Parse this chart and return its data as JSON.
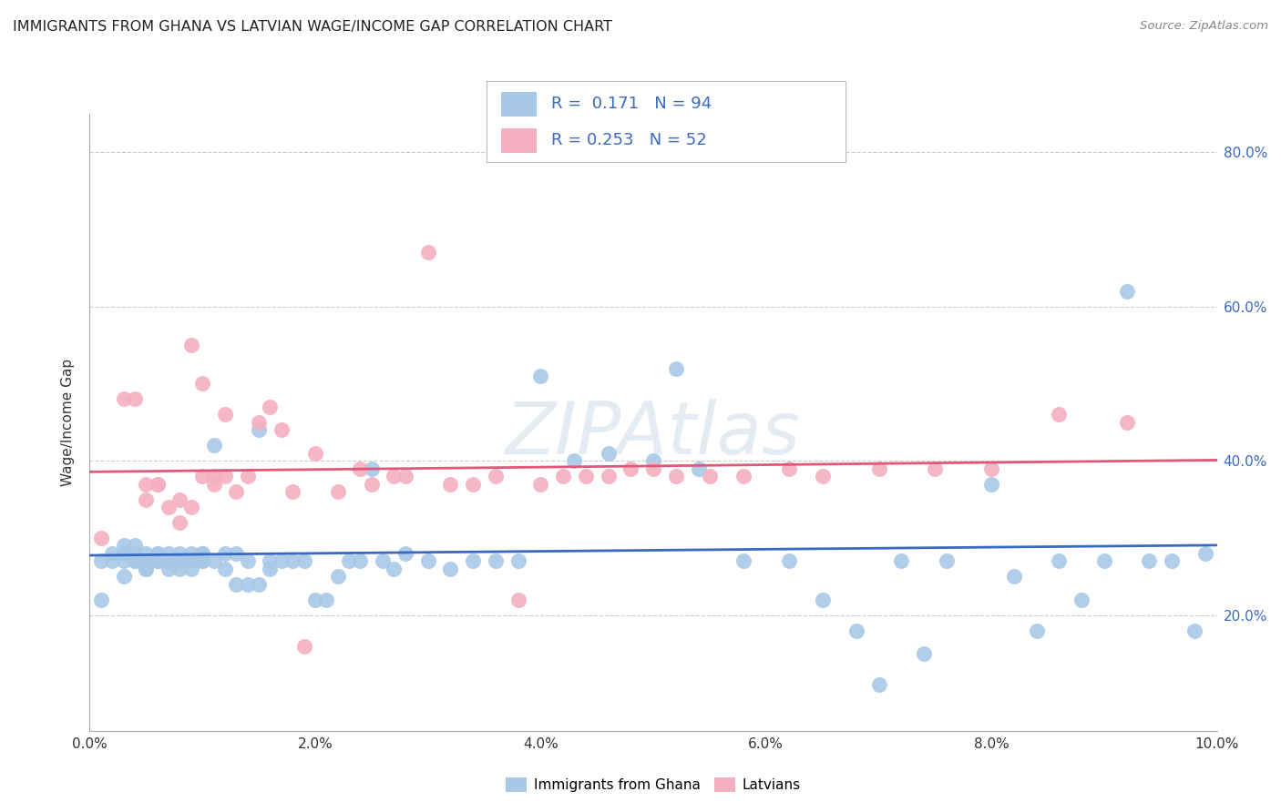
{
  "title": "IMMIGRANTS FROM GHANA VS LATVIAN WAGE/INCOME GAP CORRELATION CHART",
  "source": "Source: ZipAtlas.com",
  "ylabel": "Wage/Income Gap",
  "watermark": "ZIPAtlas",
  "xlim": [
    0.0,
    0.1
  ],
  "ylim": [
    0.05,
    0.85
  ],
  "xticks": [
    0.0,
    0.02,
    0.04,
    0.06,
    0.08,
    0.1
  ],
  "yticks": [
    0.2,
    0.4,
    0.6,
    0.8
  ],
  "ytick_labels_right": [
    "20.0%",
    "40.0%",
    "60.0%",
    "80.0%"
  ],
  "xtick_labels": [
    "0.0%",
    "2.0%",
    "4.0%",
    "6.0%",
    "8.0%",
    "10.0%"
  ],
  "blue_color": "#a8c8e8",
  "pink_color": "#f4b0c0",
  "blue_line_color": "#3a6abf",
  "pink_line_color": "#e05878",
  "text_blue": "#3a6abf",
  "legend_R_blue": "0.171",
  "legend_N_blue": "94",
  "legend_R_pink": "0.253",
  "legend_N_pink": "52",
  "legend_label_blue": "Immigrants from Ghana",
  "legend_label_pink": "Latvians",
  "blue_x": [
    0.001,
    0.001,
    0.002,
    0.002,
    0.003,
    0.003,
    0.003,
    0.003,
    0.004,
    0.004,
    0.004,
    0.004,
    0.005,
    0.005,
    0.005,
    0.005,
    0.005,
    0.005,
    0.006,
    0.006,
    0.006,
    0.006,
    0.006,
    0.007,
    0.007,
    0.007,
    0.007,
    0.007,
    0.008,
    0.008,
    0.008,
    0.008,
    0.009,
    0.009,
    0.009,
    0.009,
    0.01,
    0.01,
    0.01,
    0.01,
    0.011,
    0.011,
    0.012,
    0.012,
    0.013,
    0.013,
    0.014,
    0.014,
    0.015,
    0.015,
    0.016,
    0.016,
    0.017,
    0.018,
    0.019,
    0.02,
    0.021,
    0.022,
    0.023,
    0.024,
    0.025,
    0.026,
    0.027,
    0.028,
    0.03,
    0.032,
    0.034,
    0.036,
    0.038,
    0.04,
    0.043,
    0.046,
    0.05,
    0.052,
    0.054,
    0.058,
    0.062,
    0.065,
    0.068,
    0.07,
    0.072,
    0.074,
    0.076,
    0.08,
    0.082,
    0.084,
    0.086,
    0.088,
    0.09,
    0.092,
    0.094,
    0.096,
    0.098,
    0.099
  ],
  "blue_y": [
    0.22,
    0.27,
    0.28,
    0.27,
    0.27,
    0.28,
    0.25,
    0.29,
    0.28,
    0.27,
    0.27,
    0.29,
    0.27,
    0.28,
    0.26,
    0.26,
    0.27,
    0.27,
    0.28,
    0.27,
    0.27,
    0.27,
    0.28,
    0.27,
    0.28,
    0.27,
    0.26,
    0.27,
    0.27,
    0.28,
    0.27,
    0.26,
    0.27,
    0.28,
    0.27,
    0.26,
    0.28,
    0.27,
    0.27,
    0.28,
    0.42,
    0.27,
    0.26,
    0.28,
    0.28,
    0.24,
    0.24,
    0.27,
    0.24,
    0.44,
    0.26,
    0.27,
    0.27,
    0.27,
    0.27,
    0.22,
    0.22,
    0.25,
    0.27,
    0.27,
    0.39,
    0.27,
    0.26,
    0.28,
    0.27,
    0.26,
    0.27,
    0.27,
    0.27,
    0.51,
    0.4,
    0.41,
    0.4,
    0.52,
    0.39,
    0.27,
    0.27,
    0.22,
    0.18,
    0.11,
    0.27,
    0.15,
    0.27,
    0.37,
    0.25,
    0.18,
    0.27,
    0.22,
    0.27,
    0.62,
    0.27,
    0.27,
    0.18,
    0.28
  ],
  "pink_x": [
    0.001,
    0.003,
    0.004,
    0.005,
    0.005,
    0.006,
    0.006,
    0.007,
    0.008,
    0.008,
    0.009,
    0.009,
    0.01,
    0.01,
    0.011,
    0.011,
    0.012,
    0.012,
    0.013,
    0.014,
    0.015,
    0.016,
    0.017,
    0.018,
    0.019,
    0.02,
    0.022,
    0.024,
    0.025,
    0.027,
    0.028,
    0.03,
    0.032,
    0.034,
    0.036,
    0.038,
    0.04,
    0.042,
    0.044,
    0.046,
    0.048,
    0.05,
    0.052,
    0.055,
    0.058,
    0.062,
    0.065,
    0.07,
    0.075,
    0.08,
    0.086,
    0.092
  ],
  "pink_y": [
    0.3,
    0.48,
    0.48,
    0.35,
    0.37,
    0.37,
    0.37,
    0.34,
    0.32,
    0.35,
    0.34,
    0.55,
    0.38,
    0.5,
    0.37,
    0.38,
    0.46,
    0.38,
    0.36,
    0.38,
    0.45,
    0.47,
    0.44,
    0.36,
    0.16,
    0.41,
    0.36,
    0.39,
    0.37,
    0.38,
    0.38,
    0.67,
    0.37,
    0.37,
    0.38,
    0.22,
    0.37,
    0.38,
    0.38,
    0.38,
    0.39,
    0.39,
    0.38,
    0.38,
    0.38,
    0.39,
    0.38,
    0.39,
    0.39,
    0.39,
    0.46,
    0.45
  ]
}
